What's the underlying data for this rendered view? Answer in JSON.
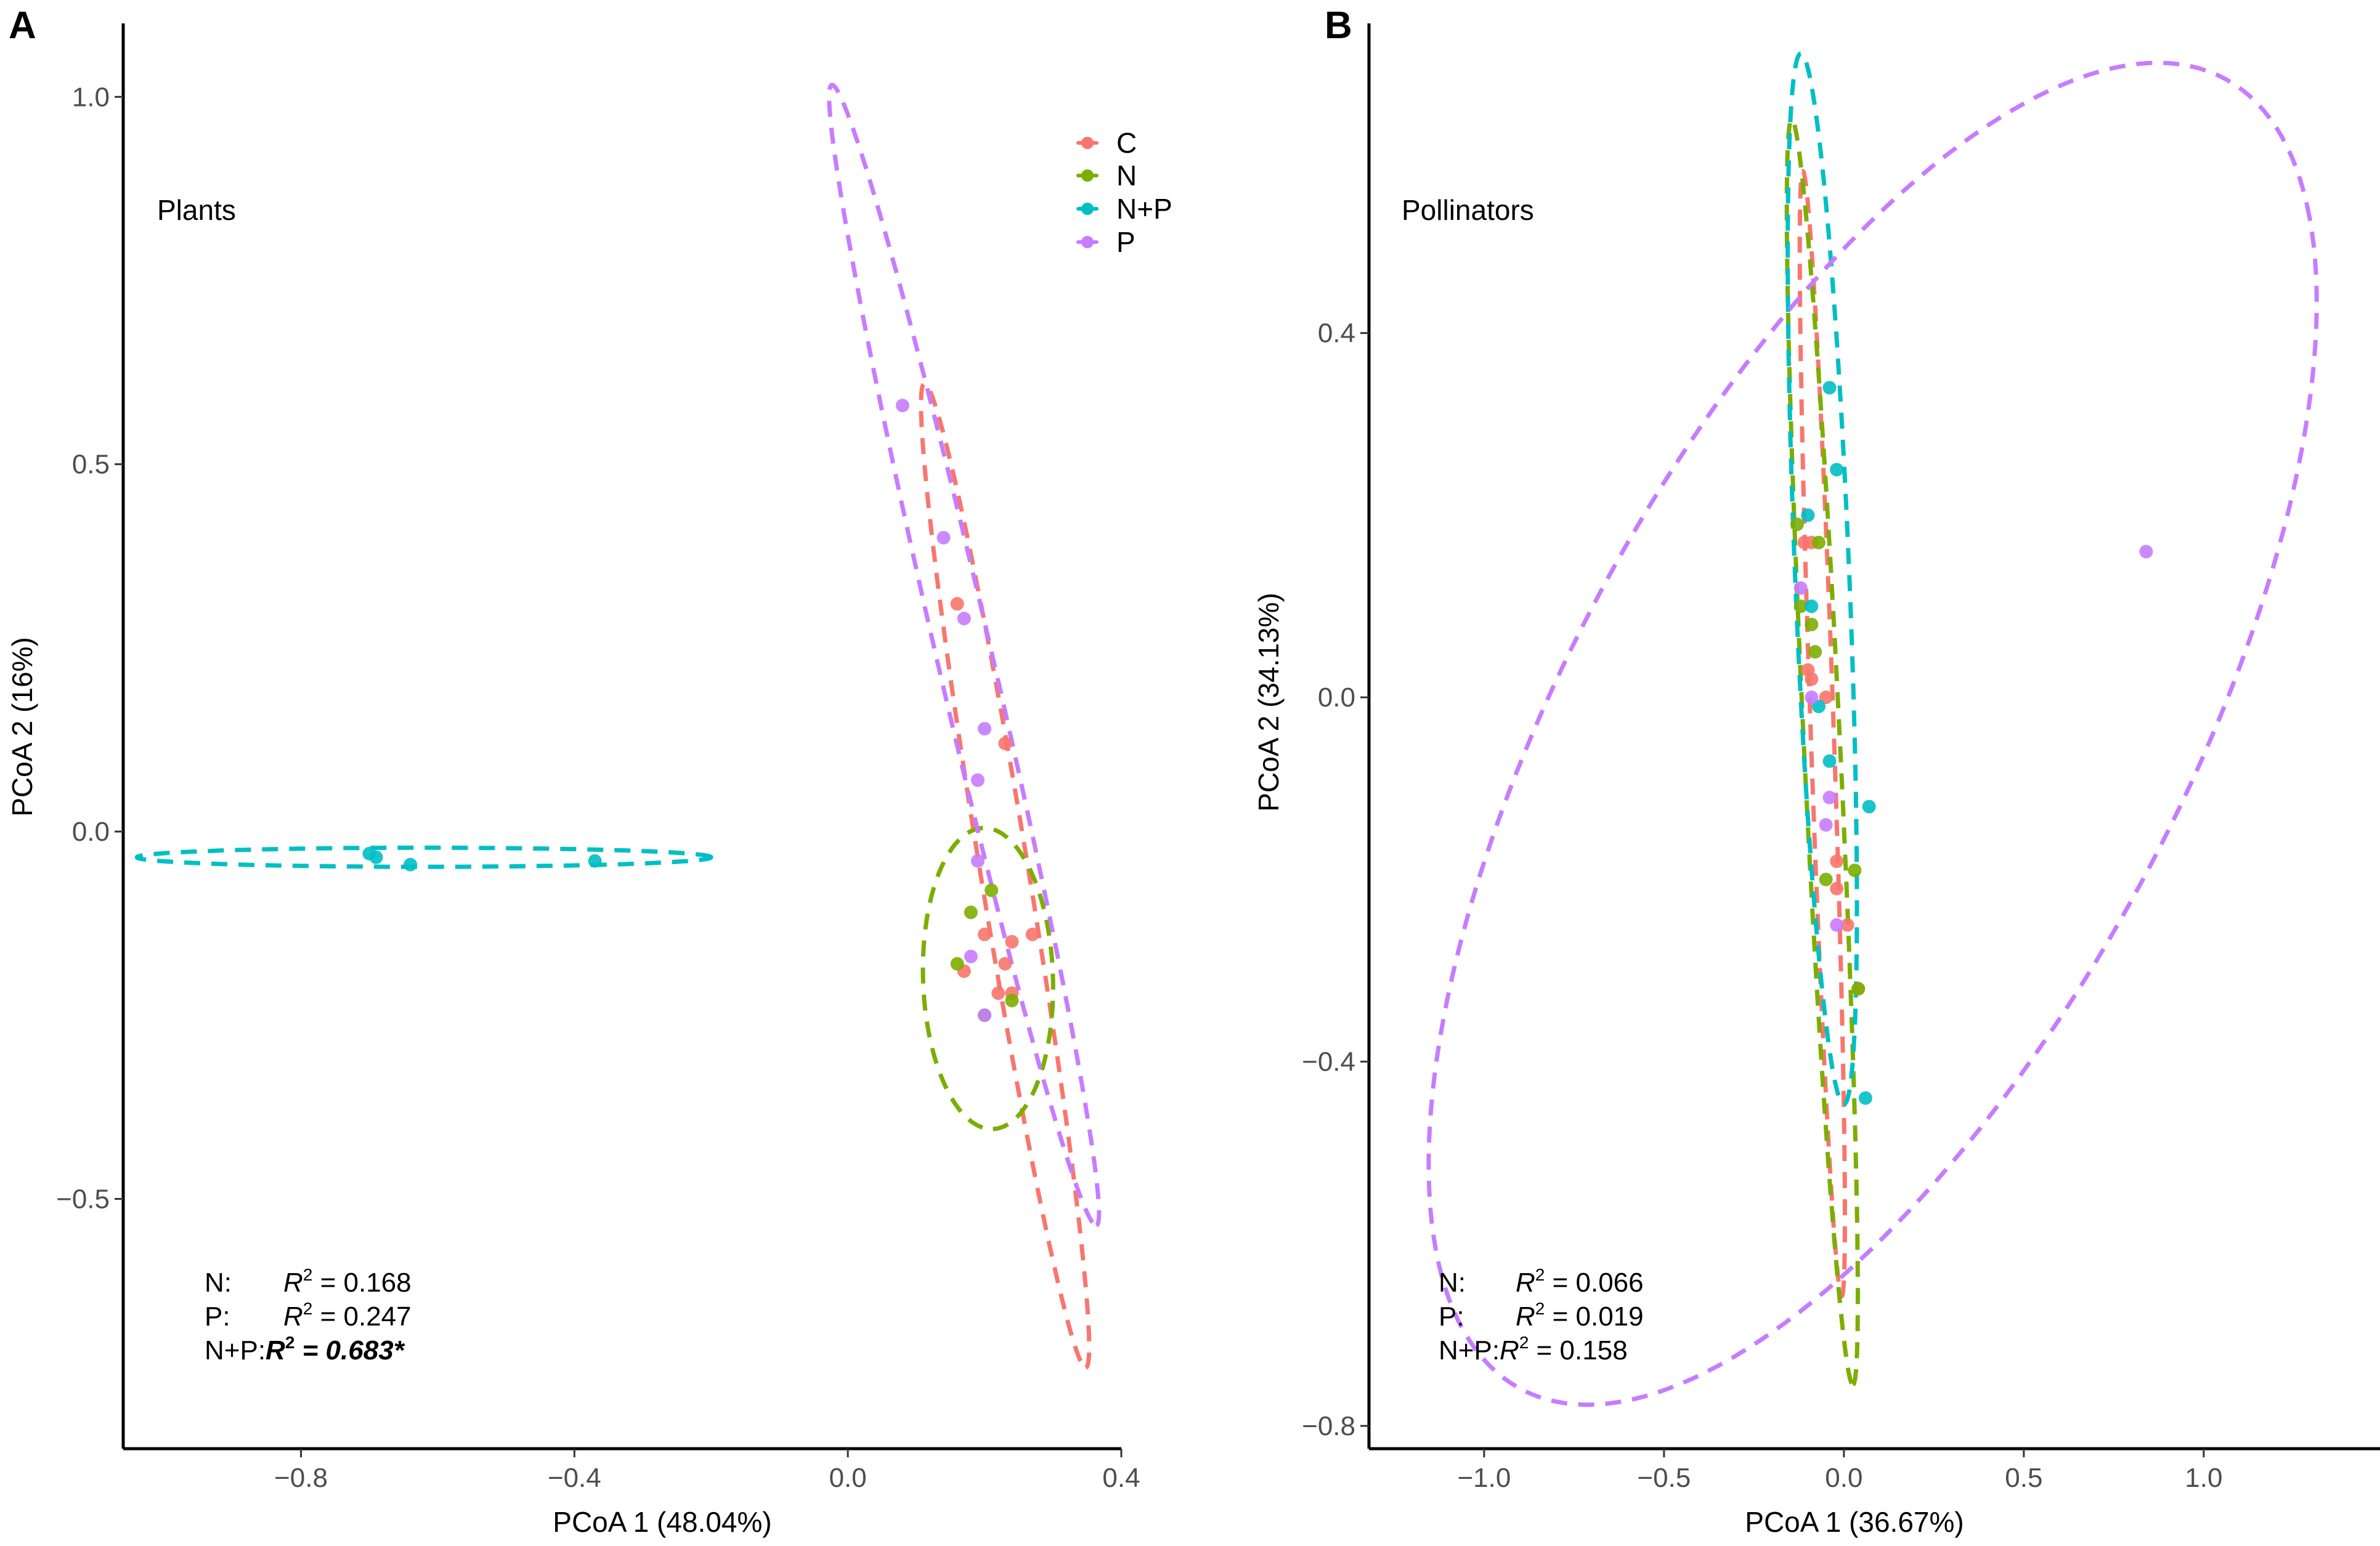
{
  "chart_data": [
    {
      "panel": "A",
      "type": "scatter",
      "label": "Plants",
      "xlabel": "PCoA 1 (48.04%)",
      "ylabel": "PCoA 2 (16%)",
      "xlim": [
        -1.06,
        0.4
      ],
      "ylim": [
        -0.84,
        1.1
      ],
      "xticks": [
        -0.8,
        -0.4,
        0.0,
        0.4
      ],
      "xtick_labels": [
        "−0.8",
        "−0.4",
        "0.0",
        "0.4"
      ],
      "yticks": [
        -0.5,
        0.0,
        0.5,
        1.0
      ],
      "ytick_labels": [
        "−0.5",
        "0.0",
        "0.5",
        "1.0"
      ],
      "legend": {
        "position": "top-right",
        "entries": [
          {
            "label": "C",
            "color": "#F8766D"
          },
          {
            "label": "N",
            "color": "#7CAE00"
          },
          {
            "label": "N+P",
            "color": "#00BFC4"
          },
          {
            "label": "P",
            "color": "#C77CFF"
          }
        ]
      },
      "series": [
        {
          "name": "C",
          "color": "#F8766D",
          "points": [
            [
              0.16,
              0.31
            ],
            [
              0.23,
              0.12
            ],
            [
              0.2,
              -0.14
            ],
            [
              0.24,
              -0.15
            ],
            [
              0.27,
              -0.14
            ],
            [
              0.23,
              -0.18
            ],
            [
              0.17,
              -0.19
            ],
            [
              0.22,
              -0.22
            ],
            [
              0.24,
              -0.22
            ]
          ],
          "ellipse": {
            "cx": 0.23,
            "cy": -0.06,
            "a": 0.68,
            "b": 0.035,
            "angle_deg": -80
          }
        },
        {
          "name": "N",
          "color": "#7CAE00",
          "points": [
            [
              0.21,
              -0.08
            ],
            [
              0.18,
              -0.11
            ],
            [
              0.24,
              -0.23
            ],
            [
              0.2,
              -0.25
            ],
            [
              0.16,
              -0.18
            ]
          ],
          "ellipse": {
            "cx": 0.205,
            "cy": -0.2,
            "a": 0.205,
            "b": 0.095,
            "angle_deg": -88
          }
        },
        {
          "name": "N+P",
          "color": "#00BFC4",
          "points": [
            [
              -0.7,
              -0.03
            ],
            [
              -0.69,
              -0.035
            ],
            [
              -0.64,
              -0.045
            ],
            [
              -0.37,
              -0.04
            ]
          ],
          "ellipse": {
            "cx": -0.62,
            "cy": -0.035,
            "a": 0.42,
            "b": 0.013,
            "angle_deg": 0
          }
        },
        {
          "name": "P",
          "color": "#C77CFF",
          "points": [
            [
              0.08,
              0.58
            ],
            [
              0.14,
              0.4
            ],
            [
              0.17,
              0.29
            ],
            [
              0.2,
              0.14
            ],
            [
              0.19,
              0.07
            ],
            [
              0.19,
              -0.04
            ],
            [
              0.18,
              -0.17
            ],
            [
              0.2,
              -0.25
            ]
          ],
          "ellipse": {
            "cx": 0.17,
            "cy": 0.24,
            "a": 0.8,
            "b": 0.04,
            "angle_deg": -76
          }
        }
      ],
      "stats": [
        {
          "term": "N:",
          "r2_label": "R",
          "r2_sup": "2",
          "value": " = 0.168",
          "emphasis": false
        },
        {
          "term": "P:",
          "r2_label": "R",
          "r2_sup": "2",
          "value": " = 0.247",
          "emphasis": false
        },
        {
          "term": "N+P:",
          "r2_label": "R",
          "r2_sup": "2",
          "value": " = 0.683*",
          "emphasis": true
        }
      ]
    },
    {
      "panel": "B",
      "type": "scatter",
      "label": "Pollinators",
      "xlabel": "PCoA 1 (36.67%)",
      "ylabel": "PCoA 2 (34.13%)",
      "xlim": [
        -1.32,
        1.49
      ],
      "ylim": [
        -0.825,
        0.74
      ],
      "xticks": [
        -1.0,
        -0.5,
        0.0,
        0.5,
        1.0
      ],
      "xtick_labels": [
        "−1.0",
        "−0.5",
        "0.0",
        "0.5",
        "1.0"
      ],
      "yticks": [
        -0.8,
        -0.4,
        0.0,
        0.4
      ],
      "ytick_labels": [
        "−0.8",
        "−0.4",
        "0.0",
        "0.4"
      ],
      "series": [
        {
          "name": "C",
          "color": "#F8766D",
          "points": [
            [
              -0.11,
              0.17
            ],
            [
              -0.09,
              0.17
            ],
            [
              -0.1,
              0.03
            ],
            [
              -0.09,
              0.02
            ],
            [
              -0.05,
              0.0
            ],
            [
              -0.02,
              -0.18
            ],
            [
              -0.02,
              -0.21
            ],
            [
              0.01,
              -0.25
            ],
            [
              0.04,
              -0.32
            ]
          ],
          "ellipse": {
            "cx": -0.06,
            "cy": -0.04,
            "a": 0.62,
            "b": 0.032,
            "angle_deg": -85
          }
        },
        {
          "name": "N",
          "color": "#7CAE00",
          "points": [
            [
              -0.13,
              0.19
            ],
            [
              -0.07,
              0.17
            ],
            [
              -0.12,
              0.1
            ],
            [
              -0.09,
              0.08
            ],
            [
              -0.08,
              0.05
            ],
            [
              -0.05,
              -0.2
            ],
            [
              0.03,
              -0.19
            ],
            [
              0.04,
              -0.32
            ]
          ],
          "ellipse": {
            "cx": -0.06,
            "cy": -0.06,
            "a": 0.7,
            "b": 0.05,
            "angle_deg": -83
          }
        },
        {
          "name": "N+P",
          "color": "#00BFC4",
          "points": [
            [
              -0.04,
              0.34
            ],
            [
              -0.02,
              0.25
            ],
            [
              -0.1,
              0.2
            ],
            [
              -0.09,
              0.1
            ],
            [
              -0.07,
              -0.01
            ],
            [
              -0.04,
              -0.07
            ],
            [
              0.07,
              -0.12
            ],
            [
              0.06,
              -0.44
            ]
          ],
          "ellipse": {
            "cx": -0.06,
            "cy": 0.13,
            "a": 0.58,
            "b": 0.075,
            "angle_deg": -84
          }
        },
        {
          "name": "P",
          "color": "#C77CFF",
          "points": [
            [
              -0.12,
              0.12
            ],
            [
              -0.09,
              0.0
            ],
            [
              -0.04,
              -0.11
            ],
            [
              -0.05,
              -0.14
            ],
            [
              -0.02,
              -0.25
            ],
            [
              0.84,
              0.16
            ]
          ],
          "ellipse": {
            "cx": 0.08,
            "cy": -0.04,
            "a": 1.34,
            "b": 0.52,
            "angle_deg": 25
          }
        }
      ],
      "stats": [
        {
          "term": "N:",
          "r2_label": "R",
          "r2_sup": "2",
          "value": " = 0.066",
          "emphasis": false
        },
        {
          "term": "P:",
          "r2_label": "R",
          "r2_sup": "2",
          "value": " = 0.019",
          "emphasis": false
        },
        {
          "term": "N+P:",
          "r2_label": "R",
          "r2_sup": "2",
          "value": " = 0.158",
          "emphasis": false
        }
      ]
    }
  ]
}
